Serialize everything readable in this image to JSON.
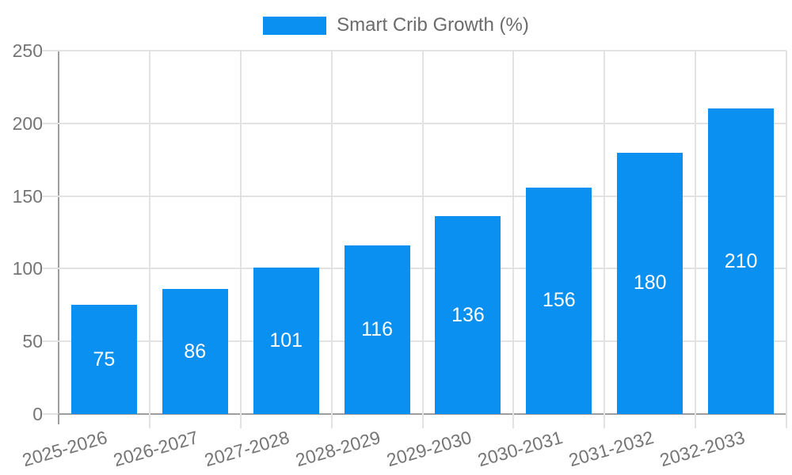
{
  "chart_data": {
    "type": "bar",
    "title": "Smart Crib Growth (%)",
    "legend": {
      "position": "top",
      "label": "Smart Crib Growth (%)"
    },
    "categories": [
      "2025-2026",
      "2026-2027",
      "2027-2028",
      "2028-2029",
      "2029-2030",
      "2030-2031",
      "2031-2032",
      "2032-2033"
    ],
    "values": [
      75,
      86,
      101,
      116,
      136,
      156,
      180,
      210
    ],
    "bar_value_labels": [
      "75",
      "86",
      "101",
      "116",
      "136",
      "156",
      "180",
      "210"
    ],
    "xlabel": "",
    "ylabel": "",
    "ylim": [
      0,
      250
    ],
    "yticks": [
      0,
      50,
      100,
      150,
      200,
      250
    ],
    "grid": true,
    "layout_hints": {
      "x_labels_rotated": true,
      "value_labels_centered_in_bars": true
    },
    "colors": {
      "bar": "#0a90f0",
      "bar_label_text": "#ffffff",
      "axis_text": "#757575",
      "legend_text": "#6b6b6b",
      "gridline": "#e2e2e2",
      "axis_line": "#9e9e9e",
      "background": "#ffffff"
    }
  }
}
